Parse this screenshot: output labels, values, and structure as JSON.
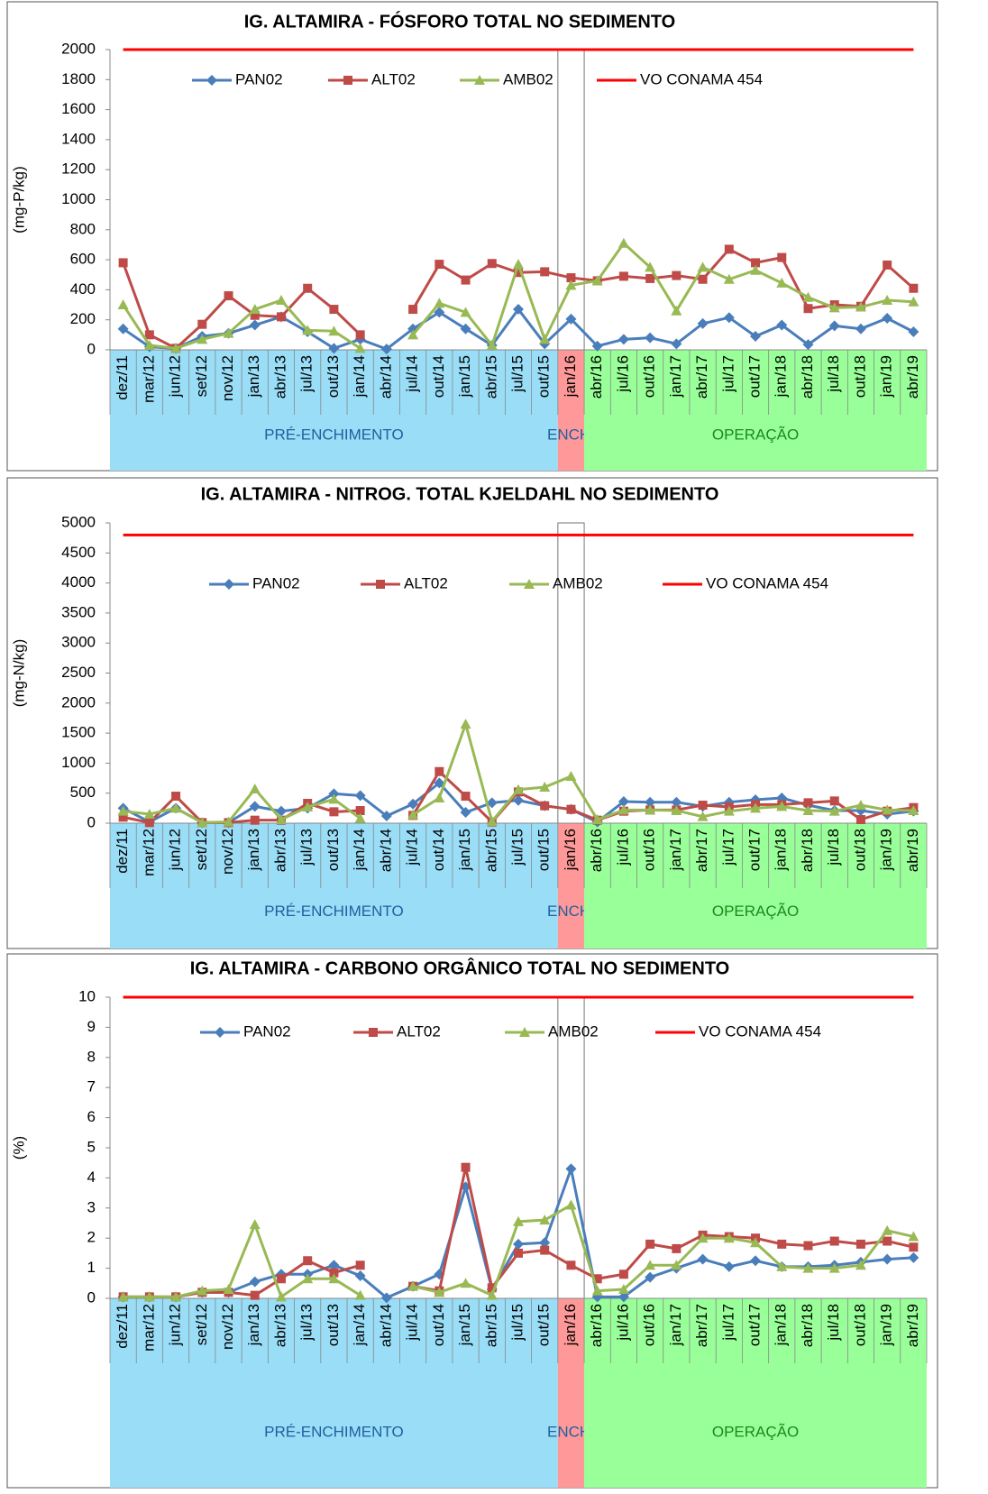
{
  "chart_data": [
    {
      "type": "line",
      "title": "IG. ALTAMIRA - FÓSFORO TOTAL NO SEDIMENTO",
      "y_label": "(mg-P/kg)",
      "categories": [
        "dez/11",
        "mar/12",
        "jun/12",
        "set/12",
        "nov/12",
        "jan/13",
        "abr/13",
        "jul/13",
        "out/13",
        "jan/14",
        "abr/14",
        "jul/14",
        "out/14",
        "jan/15",
        "abr/15",
        "jul/15",
        "out/15",
        "jan/16",
        "abr/16",
        "jul/16",
        "out/16",
        "jan/17",
        "abr/17",
        "jul/17",
        "out/17",
        "jan/18",
        "abr/18",
        "jul/18",
        "out/18",
        "jan/19",
        "abr/19"
      ],
      "ylim": [
        0,
        2000
      ],
      "yticks": [
        0,
        200,
        400,
        600,
        800,
        1000,
        1200,
        1400,
        1600,
        1800,
        2000
      ],
      "series": [
        {
          "name": "PAN02",
          "color": "#4a7ebb",
          "marker": "diamond",
          "values": [
            140,
            20,
            10,
            90,
            110,
            165,
            220,
            120,
            10,
            70,
            5,
            140,
            250,
            140,
            30,
            270,
            40,
            205,
            25,
            70,
            80,
            40,
            175,
            215,
            90,
            165,
            35,
            160,
            140,
            210,
            120
          ]
        },
        {
          "name": "ALT02",
          "color": "#be4b48",
          "marker": "square",
          "values": [
            580,
            100,
            10,
            170,
            360,
            230,
            220,
            410,
            270,
            100,
            null,
            270,
            570,
            465,
            575,
            515,
            520,
            480,
            460,
            490,
            475,
            495,
            470,
            670,
            580,
            615,
            275,
            300,
            290,
            565,
            410
          ]
        },
        {
          "name": "AMB02",
          "color": "#98b954",
          "marker": "triangle",
          "values": [
            300,
            30,
            10,
            70,
            110,
            270,
            330,
            130,
            125,
            10,
            null,
            100,
            310,
            250,
            30,
            570,
            70,
            430,
            460,
            710,
            550,
            260,
            550,
            470,
            530,
            445,
            350,
            280,
            285,
            330,
            320
          ]
        },
        {
          "name": "VO CONAMA 454",
          "color": "#ff0000",
          "marker": "none",
          "values": [
            2000,
            2000,
            2000,
            2000,
            2000,
            2000,
            2000,
            2000,
            2000,
            2000,
            2000,
            2000,
            2000,
            2000,
            2000,
            2000,
            2000,
            2000,
            2000,
            2000,
            2000,
            2000,
            2000,
            2000,
            2000,
            2000,
            2000,
            2000,
            2000,
            2000,
            2000
          ]
        }
      ],
      "phases": [
        {
          "label": "PRÉ-ENCHIMENTO",
          "count": 17,
          "color": "#99ddf7",
          "text_color": "#1f5f9f"
        },
        {
          "label": "ENCH.",
          "count": 1,
          "color": "#ff9999",
          "text_color": "#1f5f9f",
          "highlight": true
        },
        {
          "label": "OPERAÇÃO",
          "count": 13,
          "color": "#99ff99",
          "text_color": "#1a8a1a"
        }
      ]
    },
    {
      "type": "line",
      "title": "IG. ALTAMIRA - NITROG. TOTAL KJELDAHL NO SEDIMENTO",
      "y_label": "(mg-N/kg)",
      "categories": [
        "dez/11",
        "mar/12",
        "jun/12",
        "set/12",
        "nov/12",
        "jan/13",
        "abr/13",
        "jul/13",
        "out/13",
        "jan/14",
        "abr/14",
        "jul/14",
        "out/14",
        "jan/15",
        "abr/15",
        "jul/15",
        "out/15",
        "jan/16",
        "abr/16",
        "jul/16",
        "out/16",
        "jan/17",
        "abr/17",
        "jul/17",
        "out/17",
        "jan/18",
        "abr/18",
        "jul/18",
        "out/18",
        "jan/19",
        "abr/19"
      ],
      "ylim": [
        0,
        5000
      ],
      "yticks": [
        0,
        500,
        1000,
        1500,
        2000,
        2500,
        3000,
        3500,
        4000,
        4500,
        5000
      ],
      "series": [
        {
          "name": "PAN02",
          "color": "#4a7ebb",
          "marker": "diamond",
          "values": [
            250,
            20,
            250,
            10,
            10,
            280,
            200,
            250,
            490,
            460,
            120,
            320,
            670,
            180,
            340,
            380,
            290,
            230,
            20,
            360,
            350,
            350,
            280,
            350,
            390,
            420,
            300,
            210,
            210,
            150,
            200
          ]
        },
        {
          "name": "ALT02",
          "color": "#be4b48",
          "marker": "square",
          "values": [
            100,
            10,
            450,
            10,
            10,
            50,
            50,
            330,
            190,
            210,
            null,
            130,
            860,
            450,
            20,
            520,
            290,
            230,
            50,
            200,
            220,
            220,
            300,
            270,
            310,
            310,
            340,
            370,
            60,
            200,
            260
          ]
        },
        {
          "name": "AMB02",
          "color": "#98b954",
          "marker": "triangle",
          "values": [
            200,
            150,
            250,
            10,
            20,
            570,
            60,
            270,
            400,
            80,
            null,
            140,
            420,
            1650,
            30,
            560,
            600,
            780,
            60,
            220,
            220,
            210,
            110,
            200,
            250,
            280,
            210,
            200,
            300,
            220,
            210
          ]
        },
        {
          "name": "VO CONAMA 454",
          "color": "#ff0000",
          "marker": "none",
          "values": [
            4800,
            4800,
            4800,
            4800,
            4800,
            4800,
            4800,
            4800,
            4800,
            4800,
            4800,
            4800,
            4800,
            4800,
            4800,
            4800,
            4800,
            4800,
            4800,
            4800,
            4800,
            4800,
            4800,
            4800,
            4800,
            4800,
            4800,
            4800,
            4800,
            4800,
            4800
          ]
        }
      ],
      "phases": [
        {
          "label": "PRÉ-ENCHIMENTO",
          "count": 17,
          "color": "#99ddf7",
          "text_color": "#1f5f9f"
        },
        {
          "label": "ENCH.",
          "count": 1,
          "color": "#ff9999",
          "text_color": "#1f5f9f",
          "highlight": true
        },
        {
          "label": "OPERAÇÃO",
          "count": 13,
          "color": "#99ff99",
          "text_color": "#1a8a1a"
        }
      ]
    },
    {
      "type": "line",
      "title": "IG. ALTAMIRA - CARBONO ORGÂNICO TOTAL NO SEDIMENTO",
      "y_label": "(%)",
      "categories": [
        "dez/11",
        "mar/12",
        "jun/12",
        "set/12",
        "nov/12",
        "jan/13",
        "abr/13",
        "jul/13",
        "out/13",
        "jan/14",
        "abr/14",
        "jul/14",
        "out/14",
        "jan/15",
        "abr/15",
        "jul/15",
        "out/15",
        "jan/16",
        "abr/16",
        "jul/16",
        "out/16",
        "jan/17",
        "abr/17",
        "jul/17",
        "out/17",
        "jan/18",
        "abr/18",
        "jul/18",
        "out/18",
        "jan/19",
        "abr/19"
      ],
      "ylim": [
        0,
        10
      ],
      "yticks": [
        0,
        1,
        2,
        3,
        4,
        5,
        6,
        7,
        8,
        9,
        10
      ],
      "series": [
        {
          "name": "PAN02",
          "color": "#4a7ebb",
          "marker": "diamond",
          "values": [
            0.05,
            0.05,
            0.05,
            0.2,
            0.2,
            0.55,
            0.8,
            0.8,
            1.1,
            0.75,
            0.02,
            0.4,
            0.8,
            3.7,
            0.3,
            1.8,
            1.85,
            4.3,
            0.05,
            0.05,
            0.7,
            1.0,
            1.3,
            1.05,
            1.25,
            1.05,
            1.05,
            1.1,
            1.2,
            1.3,
            1.35
          ]
        },
        {
          "name": "ALT02",
          "color": "#be4b48",
          "marker": "square",
          "values": [
            0.05,
            0.05,
            0.05,
            0.2,
            0.2,
            0.1,
            0.65,
            1.25,
            0.85,
            1.1,
            null,
            0.4,
            0.25,
            4.35,
            0.35,
            1.5,
            1.6,
            1.1,
            0.65,
            0.8,
            1.8,
            1.65,
            2.1,
            2.05,
            2.0,
            1.8,
            1.75,
            1.9,
            1.8,
            1.9,
            1.7
          ]
        },
        {
          "name": "AMB02",
          "color": "#98b954",
          "marker": "triangle",
          "values": [
            0.05,
            0.05,
            0.05,
            0.25,
            0.3,
            2.45,
            0.05,
            0.65,
            0.65,
            0.1,
            null,
            0.4,
            0.2,
            0.5,
            0.1,
            2.55,
            2.6,
            3.1,
            0.25,
            0.3,
            1.1,
            1.1,
            2.0,
            2.0,
            1.85,
            1.05,
            1.0,
            1.0,
            1.1,
            2.25,
            2.05
          ]
        },
        {
          "name": "VO CONAMA 454",
          "color": "#ff0000",
          "marker": "none",
          "values": [
            10,
            10,
            10,
            10,
            10,
            10,
            10,
            10,
            10,
            10,
            10,
            10,
            10,
            10,
            10,
            10,
            10,
            10,
            10,
            10,
            10,
            10,
            10,
            10,
            10,
            10,
            10,
            10,
            10,
            10,
            10
          ]
        }
      ],
      "phases": [
        {
          "label": "PRÉ-ENCHIMENTO",
          "count": 17,
          "color": "#99ddf7",
          "text_color": "#1f5f9f"
        },
        {
          "label": "ENCH.",
          "count": 1,
          "color": "#ff9999",
          "text_color": "#1f5f9f",
          "highlight": true
        },
        {
          "label": "OPERAÇÃO",
          "count": 13,
          "color": "#99ff99",
          "text_color": "#1a8a1a"
        }
      ]
    }
  ]
}
